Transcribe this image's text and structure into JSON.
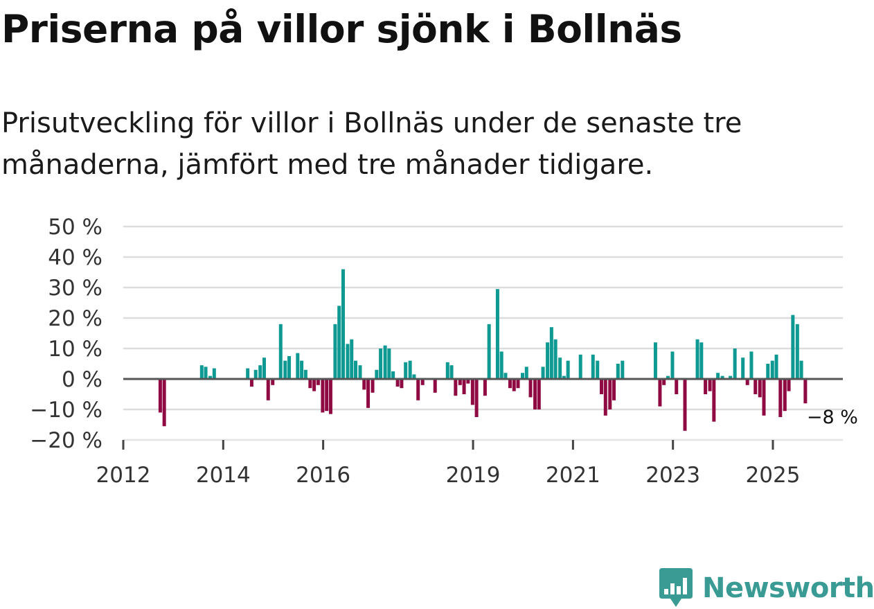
{
  "title": "Priserna på villor sjönk i Bollnäs",
  "subtitle": "Prisutveckling för villor i Bollnäs under de senaste tre månaderna, jämfört med tre månader tidigare.",
  "brand": {
    "name": "Newsworthy",
    "icon": "newsworthy-chart-bubble-icon"
  },
  "colors": {
    "positive": "#0e9a92",
    "negative": "#8f0a42",
    "grid": "#dcdcdc",
    "zero": "#555555",
    "brand": "#3a9a94"
  },
  "chart_data": {
    "type": "bar",
    "ylim": [
      -20,
      50
    ],
    "y_ticks": [
      {
        "value": 50,
        "label": "50 %"
      },
      {
        "value": 40,
        "label": "40 %"
      },
      {
        "value": 30,
        "label": "30 %"
      },
      {
        "value": 20,
        "label": "20 %"
      },
      {
        "value": 10,
        "label": "10 %"
      },
      {
        "value": 0,
        "label": "0 %"
      },
      {
        "value": -10,
        "label": "−10 %"
      },
      {
        "value": -20,
        "label": "−20 %"
      }
    ],
    "x_range": [
      2012.0,
      2026.4
    ],
    "x_ticks": [
      {
        "value": 2012,
        "label": "2012"
      },
      {
        "value": 2014,
        "label": "2014"
      },
      {
        "value": 2016,
        "label": "2016"
      },
      {
        "value": 2019,
        "label": "2019"
      },
      {
        "value": 2021,
        "label": "2021"
      },
      {
        "value": 2023,
        "label": "2023"
      },
      {
        "value": 2025,
        "label": "2025"
      }
    ],
    "annotation": {
      "x": 2025.65,
      "y": -8,
      "label": "−8 %"
    },
    "series": [
      {
        "x": 2012.74,
        "y": -11
      },
      {
        "x": 2012.82,
        "y": -15.5
      },
      {
        "x": 2013.57,
        "y": 4.5
      },
      {
        "x": 2013.65,
        "y": 4
      },
      {
        "x": 2013.74,
        "y": 1
      },
      {
        "x": 2013.82,
        "y": 3.5
      },
      {
        "x": 2014.49,
        "y": 3.5
      },
      {
        "x": 2014.57,
        "y": -2.5
      },
      {
        "x": 2014.65,
        "y": 3
      },
      {
        "x": 2014.74,
        "y": 4.5
      },
      {
        "x": 2014.82,
        "y": 7
      },
      {
        "x": 2014.9,
        "y": -7
      },
      {
        "x": 2014.99,
        "y": -2
      },
      {
        "x": 2015.15,
        "y": 18
      },
      {
        "x": 2015.24,
        "y": 6
      },
      {
        "x": 2015.32,
        "y": 7.5
      },
      {
        "x": 2015.4,
        "y": 0
      },
      {
        "x": 2015.49,
        "y": 8.5
      },
      {
        "x": 2015.57,
        "y": 6
      },
      {
        "x": 2015.65,
        "y": 3
      },
      {
        "x": 2015.74,
        "y": -3
      },
      {
        "x": 2015.82,
        "y": -4
      },
      {
        "x": 2015.9,
        "y": -2
      },
      {
        "x": 2015.99,
        "y": -11
      },
      {
        "x": 2016.07,
        "y": -10.5
      },
      {
        "x": 2016.15,
        "y": -11.5
      },
      {
        "x": 2016.24,
        "y": 18
      },
      {
        "x": 2016.32,
        "y": 24
      },
      {
        "x": 2016.4,
        "y": 36
      },
      {
        "x": 2016.49,
        "y": 11.5
      },
      {
        "x": 2016.57,
        "y": 13
      },
      {
        "x": 2016.65,
        "y": 6
      },
      {
        "x": 2016.74,
        "y": 4.5
      },
      {
        "x": 2016.82,
        "y": -3.5
      },
      {
        "x": 2016.9,
        "y": -9.5
      },
      {
        "x": 2016.99,
        "y": -4.5
      },
      {
        "x": 2017.07,
        "y": 3
      },
      {
        "x": 2017.15,
        "y": 10
      },
      {
        "x": 2017.24,
        "y": 11
      },
      {
        "x": 2017.32,
        "y": 10
      },
      {
        "x": 2017.4,
        "y": 2.5
      },
      {
        "x": 2017.49,
        "y": -2.5
      },
      {
        "x": 2017.57,
        "y": -3
      },
      {
        "x": 2017.65,
        "y": 5.5
      },
      {
        "x": 2017.74,
        "y": 6
      },
      {
        "x": 2017.82,
        "y": 1.5
      },
      {
        "x": 2017.9,
        "y": -7
      },
      {
        "x": 2017.99,
        "y": -2
      },
      {
        "x": 2018.24,
        "y": -4.5
      },
      {
        "x": 2018.49,
        "y": 5.5
      },
      {
        "x": 2018.57,
        "y": 4.5
      },
      {
        "x": 2018.65,
        "y": -5.5
      },
      {
        "x": 2018.74,
        "y": -2
      },
      {
        "x": 2018.82,
        "y": -5
      },
      {
        "x": 2018.9,
        "y": -1.5
      },
      {
        "x": 2018.99,
        "y": -8.5
      },
      {
        "x": 2019.07,
        "y": -12.5
      },
      {
        "x": 2019.24,
        "y": -5.5
      },
      {
        "x": 2019.32,
        "y": 18
      },
      {
        "x": 2019.49,
        "y": 29.5
      },
      {
        "x": 2019.57,
        "y": 9
      },
      {
        "x": 2019.65,
        "y": 2
      },
      {
        "x": 2019.74,
        "y": -3
      },
      {
        "x": 2019.82,
        "y": -4
      },
      {
        "x": 2019.9,
        "y": -3
      },
      {
        "x": 2019.99,
        "y": 2
      },
      {
        "x": 2020.07,
        "y": 4
      },
      {
        "x": 2020.15,
        "y": -6
      },
      {
        "x": 2020.24,
        "y": -10
      },
      {
        "x": 2020.32,
        "y": -10
      },
      {
        "x": 2020.4,
        "y": 4
      },
      {
        "x": 2020.49,
        "y": 12
      },
      {
        "x": 2020.57,
        "y": 17
      },
      {
        "x": 2020.65,
        "y": 13
      },
      {
        "x": 2020.74,
        "y": 7
      },
      {
        "x": 2020.82,
        "y": 1
      },
      {
        "x": 2020.9,
        "y": 6
      },
      {
        "x": 2021.15,
        "y": 8
      },
      {
        "x": 2021.4,
        "y": 8
      },
      {
        "x": 2021.49,
        "y": 6
      },
      {
        "x": 2021.57,
        "y": -5
      },
      {
        "x": 2021.65,
        "y": -12
      },
      {
        "x": 2021.74,
        "y": -10
      },
      {
        "x": 2021.82,
        "y": -7
      },
      {
        "x": 2021.9,
        "y": 5
      },
      {
        "x": 2021.99,
        "y": 6
      },
      {
        "x": 2022.65,
        "y": 12
      },
      {
        "x": 2022.74,
        "y": -9
      },
      {
        "x": 2022.82,
        "y": -2
      },
      {
        "x": 2022.9,
        "y": 1
      },
      {
        "x": 2022.99,
        "y": 9
      },
      {
        "x": 2023.07,
        "y": -5
      },
      {
        "x": 2023.24,
        "y": -17
      },
      {
        "x": 2023.49,
        "y": 13
      },
      {
        "x": 2023.57,
        "y": 12
      },
      {
        "x": 2023.65,
        "y": -5
      },
      {
        "x": 2023.74,
        "y": -4
      },
      {
        "x": 2023.82,
        "y": -14
      },
      {
        "x": 2023.9,
        "y": 2
      },
      {
        "x": 2023.99,
        "y": 1
      },
      {
        "x": 2024.15,
        "y": 1
      },
      {
        "x": 2024.24,
        "y": 10
      },
      {
        "x": 2024.4,
        "y": 7
      },
      {
        "x": 2024.49,
        "y": -2
      },
      {
        "x": 2024.57,
        "y": 9
      },
      {
        "x": 2024.65,
        "y": -5
      },
      {
        "x": 2024.74,
        "y": -6
      },
      {
        "x": 2024.82,
        "y": -12
      },
      {
        "x": 2024.9,
        "y": 5
      },
      {
        "x": 2024.99,
        "y": 6
      },
      {
        "x": 2025.07,
        "y": 8
      },
      {
        "x": 2025.15,
        "y": -12.5
      },
      {
        "x": 2025.24,
        "y": -10.5
      },
      {
        "x": 2025.32,
        "y": -4
      },
      {
        "x": 2025.4,
        "y": 21
      },
      {
        "x": 2025.49,
        "y": 18
      },
      {
        "x": 2025.57,
        "y": 6
      },
      {
        "x": 2025.65,
        "y": -8
      }
    ]
  }
}
